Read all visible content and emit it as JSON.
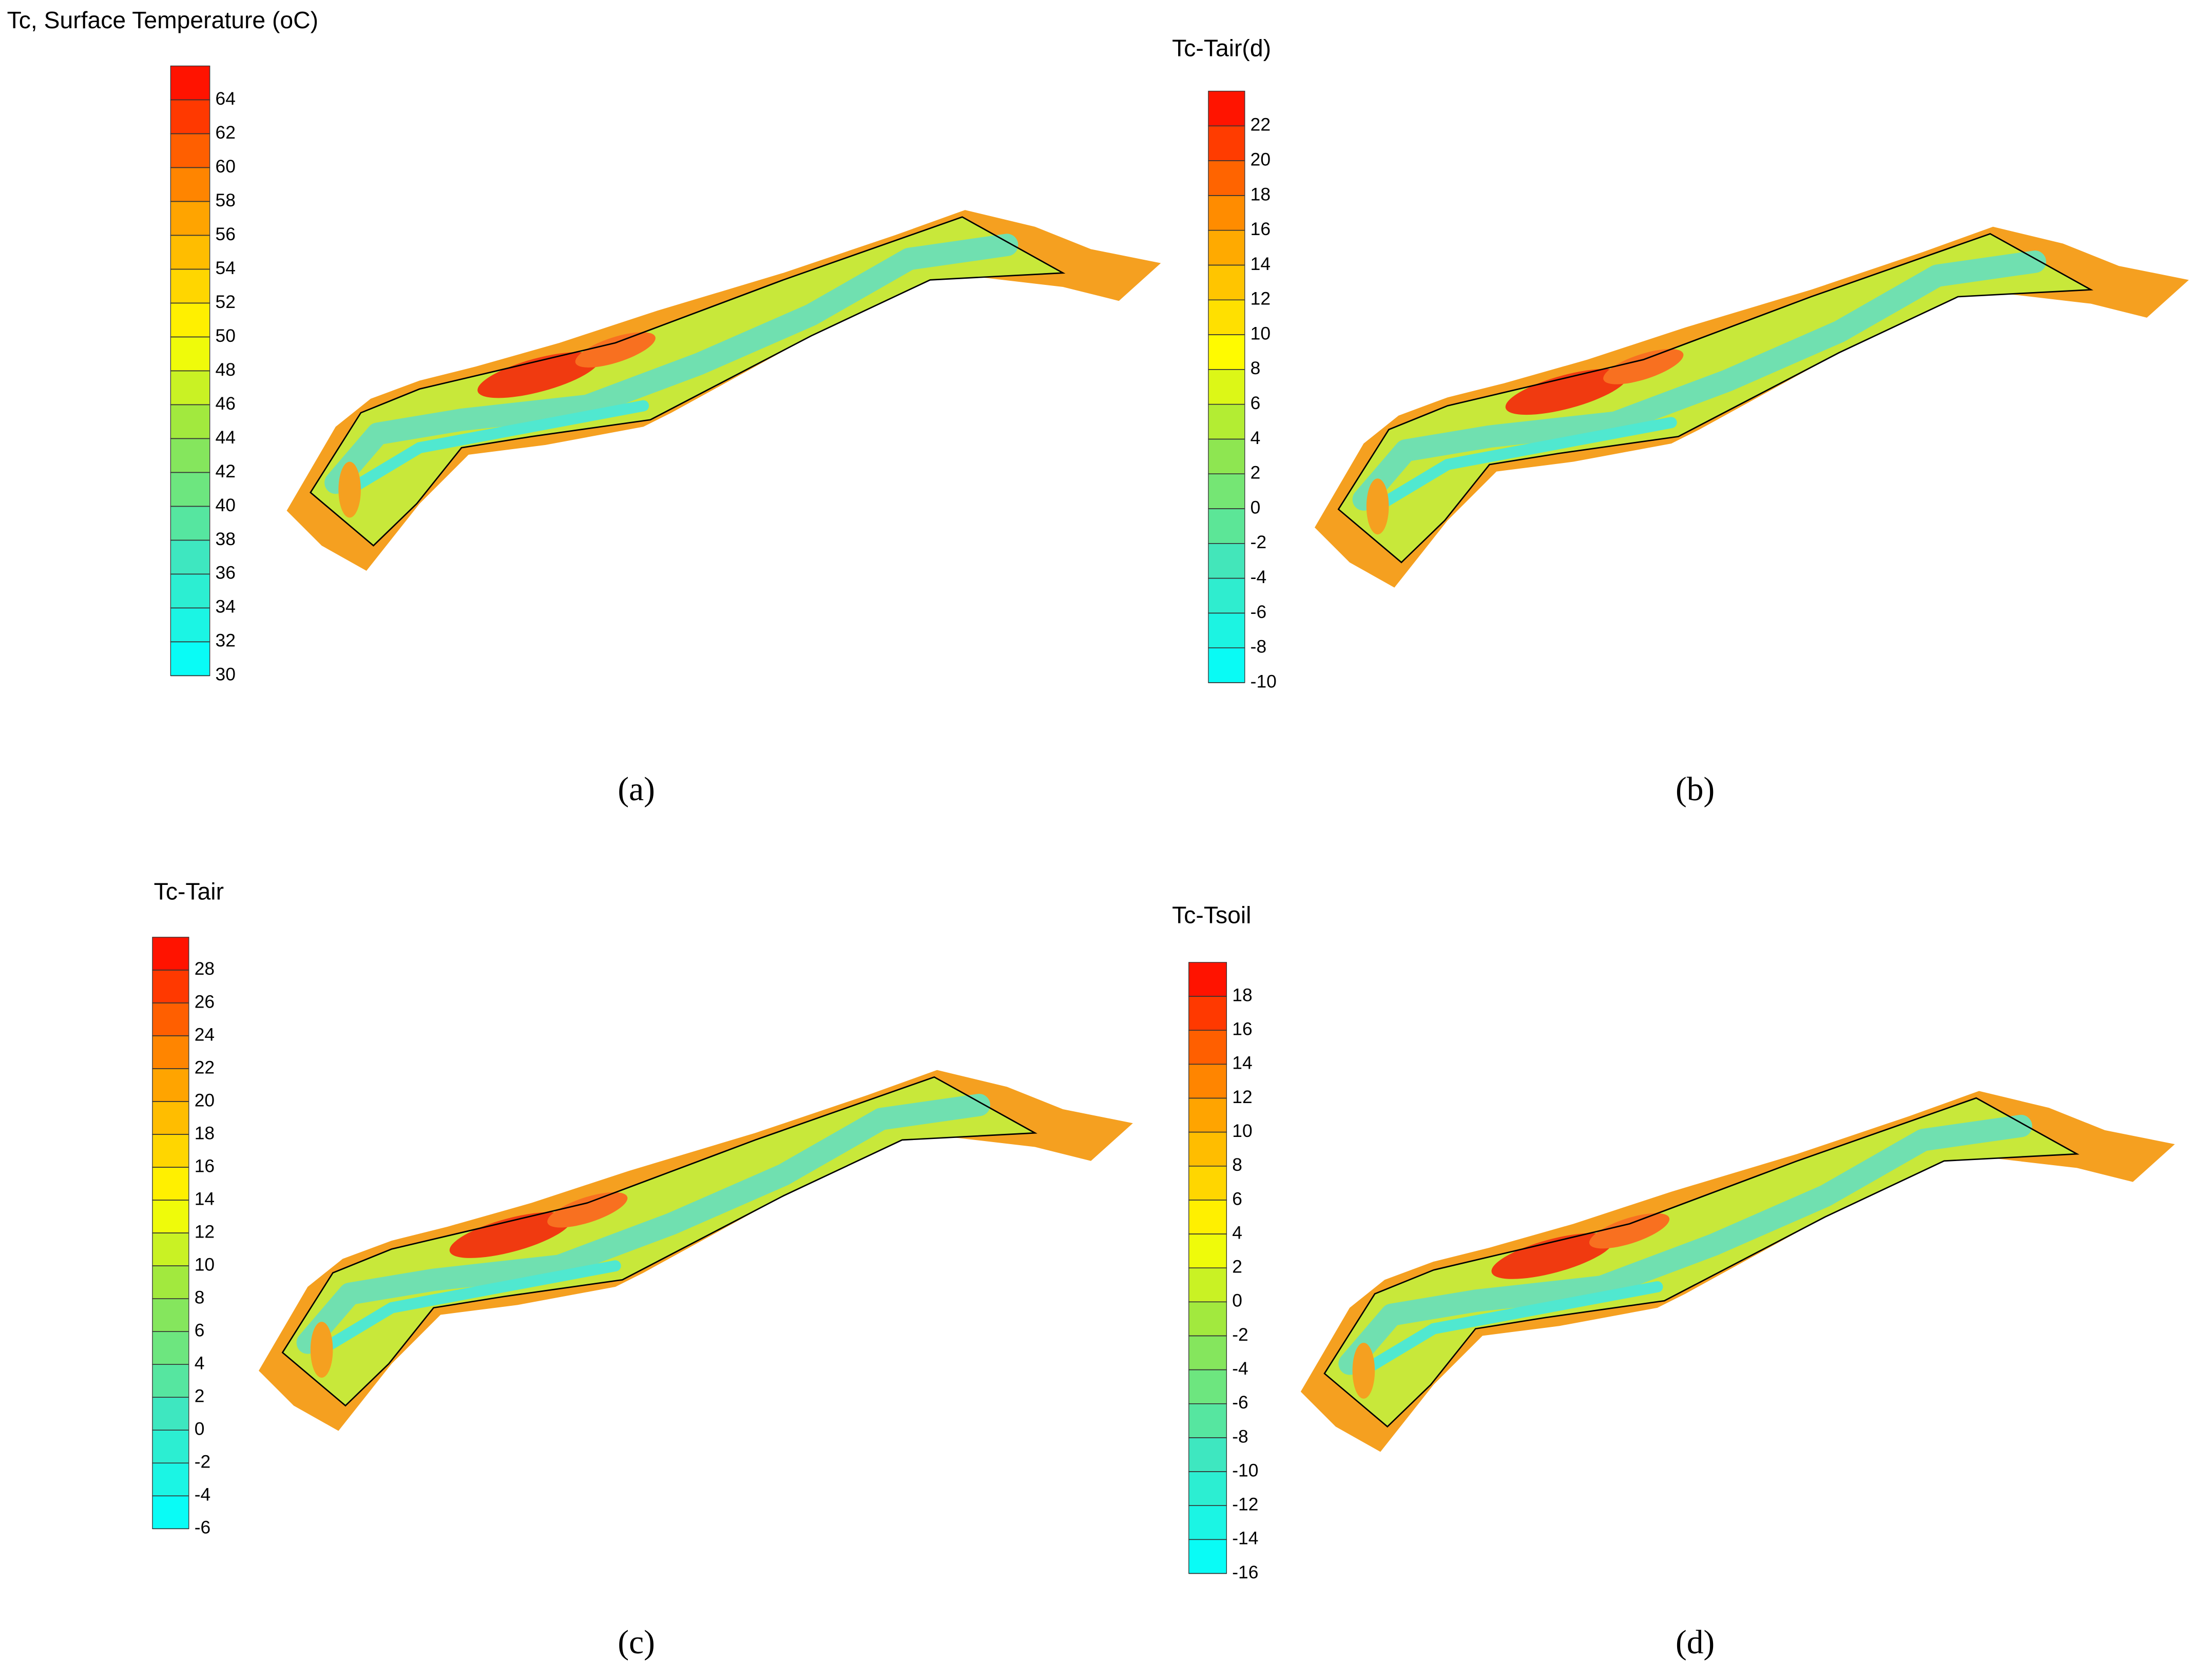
{
  "chart_data": [
    {
      "type": "contour",
      "title": "Tc, Surface Temperature (oC)",
      "ylim": [
        30,
        66
      ],
      "yticks": [
        30,
        32,
        34,
        36,
        38,
        40,
        42,
        44,
        46,
        48,
        50,
        52,
        54,
        56,
        58,
        60,
        62,
        64
      ],
      "caption": "(a)"
    },
    {
      "type": "contour",
      "title": "Tc-Tair(d)",
      "ylim": [
        -10,
        24
      ],
      "yticks": [
        -10,
        -8,
        -6,
        -4,
        -2,
        0,
        2,
        4,
        6,
        8,
        10,
        12,
        14,
        16,
        18,
        20,
        22
      ],
      "caption": "(b)"
    },
    {
      "type": "contour",
      "title": "Tc-Tair",
      "ylim": [
        -6,
        30
      ],
      "yticks": [
        -6,
        -4,
        -2,
        0,
        2,
        4,
        6,
        8,
        10,
        12,
        14,
        16,
        18,
        20,
        22,
        24,
        26,
        28
      ],
      "caption": "(c)"
    },
    {
      "type": "contour",
      "title": "Tc-Tsoil",
      "ylim": [
        -16,
        20
      ],
      "yticks": [
        -16,
        -14,
        -12,
        -10,
        -8,
        -6,
        -4,
        -2,
        0,
        2,
        4,
        6,
        8,
        10,
        12,
        14,
        16,
        18
      ],
      "caption": "(d)"
    }
  ]
}
